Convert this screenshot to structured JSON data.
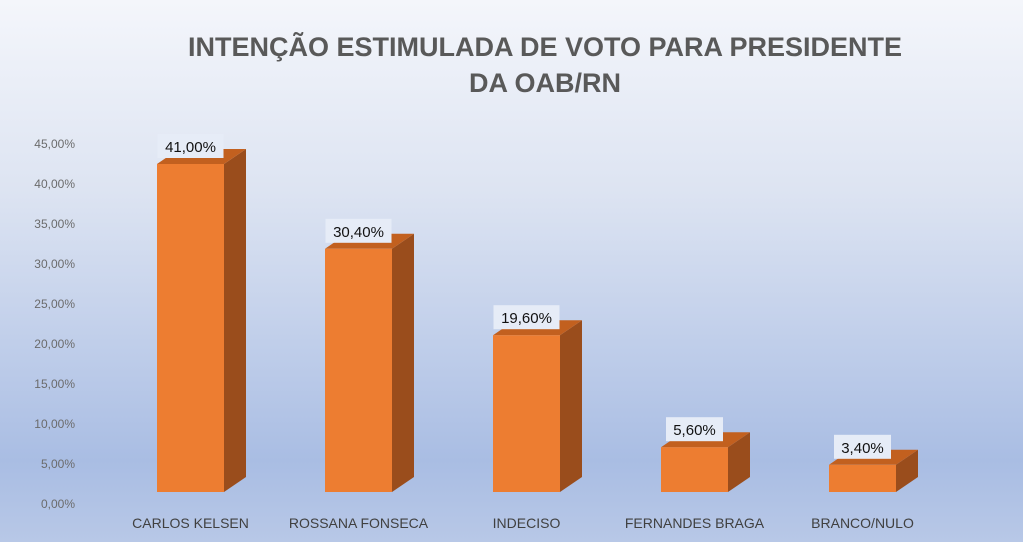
{
  "chart_data": {
    "type": "bar",
    "title_line1": "INTENÇÃO ESTIMULADA DE VOTO PARA PRESIDENTE",
    "title_line2": "DA OAB/RN",
    "categories": [
      "CARLOS KELSEN",
      "ROSSANA FONSECA",
      "INDECISO",
      "FERNANDES BRAGA",
      "BRANCO/NULO"
    ],
    "values": [
      41.0,
      30.4,
      19.6,
      5.6,
      3.4
    ],
    "value_labels": [
      "41,00%",
      "30,40%",
      "19,60%",
      "5,60%",
      "3,40%"
    ],
    "y_ticks": [
      "0,00%",
      "5,00%",
      "10,00%",
      "15,00%",
      "20,00%",
      "25,00%",
      "30,00%",
      "35,00%",
      "40,00%",
      "45,00%"
    ],
    "ylim": [
      0,
      45
    ],
    "xlabel": "",
    "ylabel": "",
    "grid": false,
    "colors": {
      "front": "#ed7d31",
      "side": "#9a4d1c",
      "top": "#c2601f",
      "label_bg": "#e6ecf7"
    }
  }
}
